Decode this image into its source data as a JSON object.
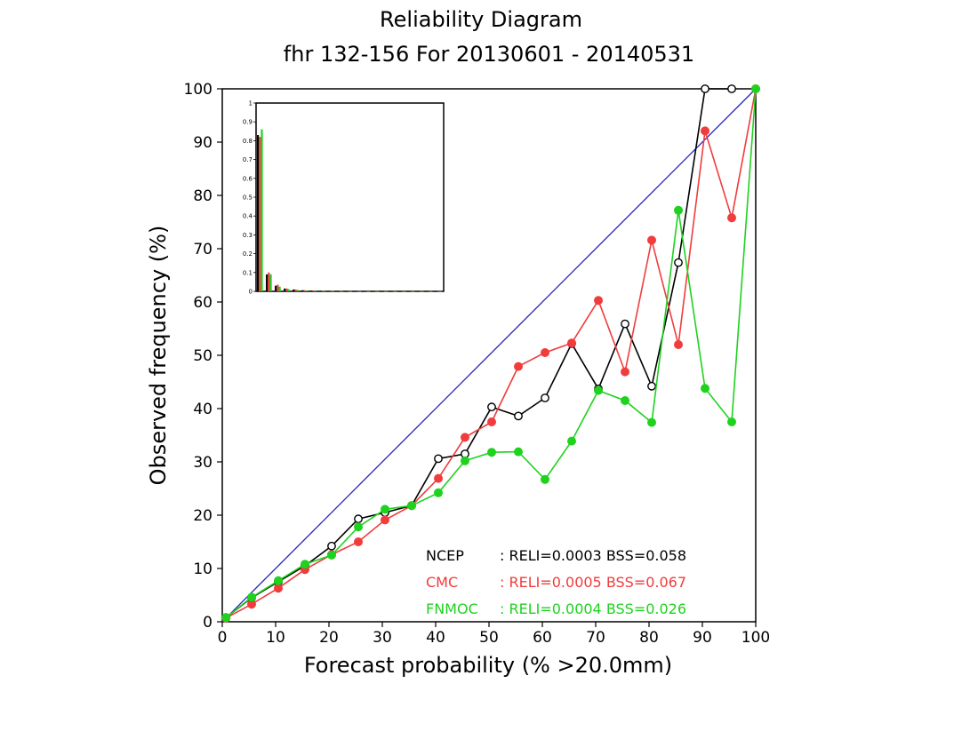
{
  "chart_data": {
    "type": "line",
    "title": "Reliability Diagram",
    "subtitle": "fhr 132-156 For 20130601 - 20140531",
    "xlabel": "Forecast probability (% >20.0mm)",
    "ylabel": "Observed frequency (%)",
    "xlim": [
      0,
      100
    ],
    "ylim": [
      0,
      100
    ],
    "xticks": [
      "0",
      "10",
      "20",
      "30",
      "40",
      "50",
      "60",
      "70",
      "80",
      "90",
      "100"
    ],
    "yticks": [
      "0",
      "10",
      "20",
      "30",
      "40",
      "50",
      "60",
      "70",
      "80",
      "90",
      "100"
    ],
    "grid": false,
    "legend_position": "bottom-right",
    "diagonal_color": "#2020c0",
    "series": [
      {
        "name": "NCEP",
        "stats": ": RELI=0.0003  BSS=0.058",
        "color": "#000000",
        "marker": "open-circle",
        "x": [
          0.7,
          5.5,
          10.5,
          15.5,
          20.5,
          25.5,
          30.5,
          35.5,
          40.5,
          45.5,
          50.5,
          55.5,
          60.5,
          65.5,
          70.5,
          75.5,
          80.5,
          85.5,
          90.5,
          95.5
        ],
        "y": [
          0.8,
          4.5,
          7.5,
          10.5,
          14.2,
          19.3,
          20.5,
          21.8,
          30.6,
          31.5,
          40.3,
          38.6,
          42.0,
          52.2,
          43.7,
          55.9,
          44.2,
          67.4,
          100.0,
          100.0
        ]
      },
      {
        "name": "CMC",
        "stats": ": RELI=0.0005  BSS=0.067",
        "color": "#f03c3c",
        "marker": "filled-circle",
        "x": [
          0.7,
          5.5,
          10.5,
          15.5,
          20.5,
          25.5,
          30.5,
          35.5,
          40.5,
          45.5,
          50.5,
          55.5,
          60.5,
          65.5,
          70.5,
          75.5,
          80.5,
          85.5,
          90.5,
          95.5,
          100
        ],
        "y": [
          0.7,
          3.3,
          6.3,
          9.8,
          12.6,
          15.0,
          19.1,
          21.8,
          26.9,
          34.6,
          37.5,
          47.9,
          50.5,
          52.3,
          60.3,
          46.9,
          71.6,
          52.0,
          92.1,
          75.8,
          100.0
        ]
      },
      {
        "name": "FNMOC",
        "stats": ": RELI=0.0004  BSS=0.026",
        "color": "#1ed21e",
        "marker": "filled-circle",
        "x": [
          0.7,
          5.5,
          10.5,
          15.5,
          20.5,
          25.5,
          30.5,
          35.5,
          40.5,
          45.5,
          50.5,
          55.5,
          60.5,
          65.5,
          70.5,
          75.5,
          80.5,
          85.5,
          90.5,
          95.5,
          100
        ],
        "y": [
          0.8,
          4.6,
          7.7,
          10.8,
          12.5,
          17.8,
          21.1,
          21.8,
          24.2,
          30.2,
          31.8,
          31.9,
          26.7,
          33.9,
          43.4,
          41.5,
          37.4,
          77.2,
          43.8,
          37.5,
          100.0
        ]
      }
    ],
    "inset": {
      "type": "bar",
      "description_ylim": [
        0,
        1
      ],
      "yticks": [
        "0",
        "0.1",
        "0.2",
        "0.3",
        "0.4",
        "0.5",
        "0.6",
        "0.7",
        "0.8",
        "0.9",
        "1"
      ],
      "bins": 21,
      "series": [
        {
          "name": "NCEP",
          "color": "#000000",
          "values": [
            0.83,
            0.09,
            0.03,
            0.015,
            0.01,
            0.006,
            0.004,
            0.003,
            0.002,
            0.002,
            0.001,
            0.001,
            0.001,
            0.001,
            0.001,
            0.001,
            0.001,
            0.001,
            0.001,
            0.001,
            0.001
          ]
        },
        {
          "name": "CMC",
          "color": "#f03c3c",
          "values": [
            0.82,
            0.1,
            0.035,
            0.015,
            0.01,
            0.006,
            0.004,
            0.003,
            0.002,
            0.002,
            0.001,
            0.001,
            0.001,
            0.001,
            0.001,
            0.001,
            0.001,
            0.001,
            0.001,
            0.001,
            0.001
          ]
        },
        {
          "name": "FNMOC",
          "color": "#1ed21e",
          "values": [
            0.86,
            0.09,
            0.025,
            0.012,
            0.008,
            0.005,
            0.003,
            0.002,
            0.002,
            0.001,
            0.001,
            0.001,
            0.001,
            0.001,
            0.001,
            0.001,
            0.001,
            0.001,
            0.001,
            0.001,
            0.001
          ]
        }
      ]
    }
  }
}
